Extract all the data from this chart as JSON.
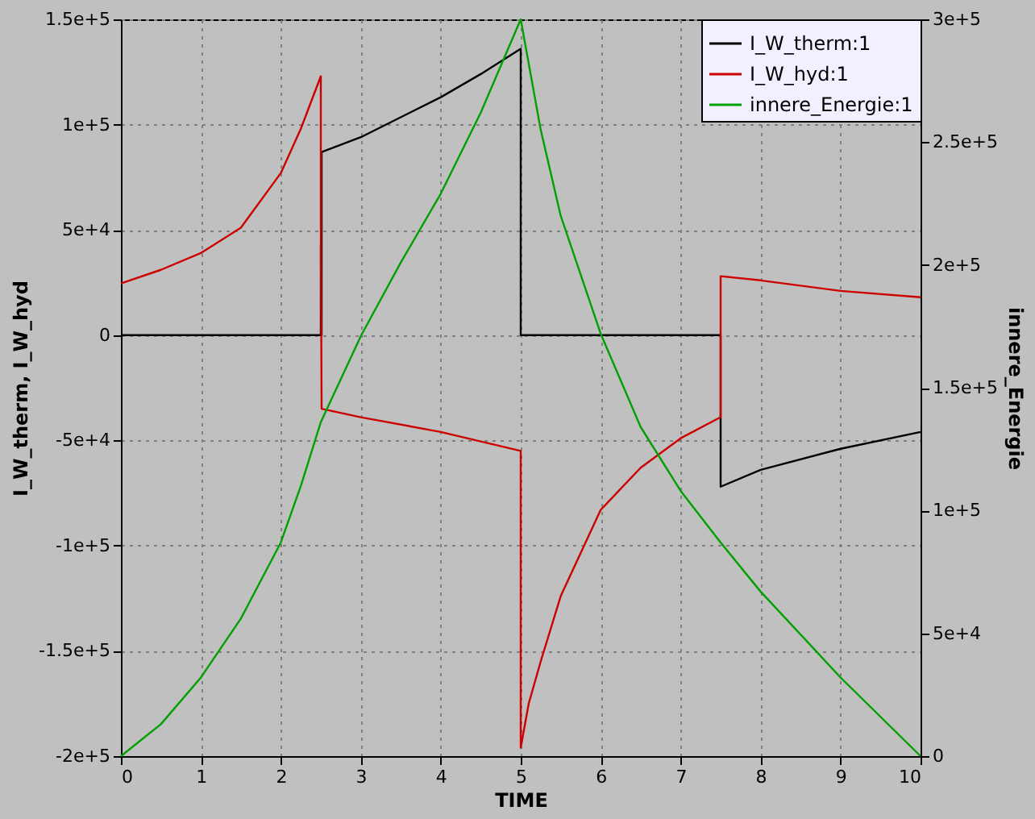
{
  "chart_data": {
    "type": "line",
    "xlabel": "TIME",
    "ylabel": "I_W_therm, I_W_hyd",
    "y2label": "innere_Energie",
    "xlim": [
      0,
      10
    ],
    "xticks": [
      0,
      1,
      2,
      3,
      4,
      5,
      6,
      7,
      8,
      9,
      10
    ],
    "ylim": [
      -200000,
      150000
    ],
    "yticks": [
      {
        "value": -200000,
        "label": "-2e+5"
      },
      {
        "value": -150000,
        "label": "-1.5e+5"
      },
      {
        "value": -100000,
        "label": "-1e+5"
      },
      {
        "value": -50000,
        "label": "-5e+4"
      },
      0,
      {
        "value": 50000,
        "label": "5e+4"
      },
      {
        "value": 100000,
        "label": "1e+5"
      },
      {
        "value": 150000,
        "label": "1.5e+5"
      }
    ],
    "y2lim": [
      0,
      300000
    ],
    "y2ticks": [
      0,
      {
        "value": 50000,
        "label": "5e+4"
      },
      {
        "value": 100000,
        "label": "1e+5"
      },
      {
        "value": 150000,
        "label": "1.5e+5"
      },
      {
        "value": 200000,
        "label": "2e+5"
      },
      {
        "value": 250000,
        "label": "2.5e+5"
      },
      {
        "value": 300000,
        "label": "3e+5"
      }
    ],
    "grid": true,
    "legend": "top right",
    "marker": "none",
    "line_style": "solid",
    "series": [
      {
        "name": "I_W_therm:1",
        "color": "#000000",
        "x": [
          0,
          2.5,
          2.5,
          2.51,
          2.51,
          3,
          4,
          4.5,
          5,
          5,
          7.5,
          7.5,
          8,
          9,
          10
        ],
        "values": [
          0,
          0,
          43000,
          0,
          87000,
          94000,
          113000,
          124000,
          136000,
          0,
          0,
          -72000,
          -64000,
          -54000,
          -46000
        ]
      },
      {
        "name": "I_W_hyd:1",
        "color": "#cc0000",
        "x": [
          0,
          0.5,
          1,
          1.5,
          2,
          2.25,
          2.5,
          2.5,
          2.51,
          3,
          4,
          5,
          5,
          5.1,
          5.25,
          5.5,
          6,
          6.5,
          7,
          7.5,
          7.5,
          8,
          9,
          10
        ],
        "values": [
          24500,
          31000,
          39000,
          51000,
          77000,
          98000,
          123000,
          52000,
          -35000,
          -39000,
          -46000,
          -55000,
          -196000,
          -175000,
          -155000,
          -124000,
          -83000,
          -63000,
          -49000,
          -39000,
          28000,
          26000,
          21000,
          18000
        ]
      },
      {
        "name": "innere_Energie:1",
        "color": "#00a000",
        "axis": "y2",
        "x": [
          0,
          0.5,
          1,
          1.5,
          2,
          2.25,
          2.5,
          3,
          3.5,
          4,
          4.5,
          5,
          5.25,
          5.5,
          6,
          6.5,
          7,
          7.5,
          8,
          9,
          10
        ],
        "values": [
          0,
          13000,
          32000,
          56000,
          87000,
          110000,
          136000,
          171000,
          201000,
          229000,
          262000,
          300000,
          255000,
          220000,
          172000,
          134000,
          108000,
          87000,
          67000,
          32000,
          0
        ]
      }
    ]
  }
}
